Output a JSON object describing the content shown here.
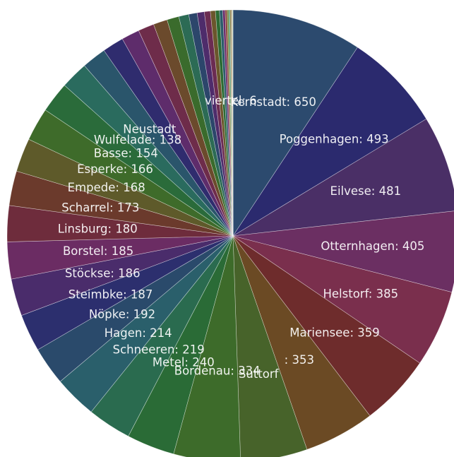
{
  "chart_data": {
    "type": "pie",
    "title": "",
    "slices": [
      {
        "label": "Kernstadt",
        "value": 650,
        "color": "#2c4a6e"
      },
      {
        "label": "Poggenhagen",
        "value": 493,
        "color": "#2b2a6e"
      },
      {
        "label": "Eilvese",
        "value": 481,
        "color": "#4a2f66"
      },
      {
        "label": "Otternhagen",
        "value": 405,
        "color": "#6b2f62"
      },
      {
        "label": "Helstorf",
        "value": 385,
        "color": "#7a2f4d"
      },
      {
        "label": "Mariensee",
        "value": 359,
        "color": "#6e2c2c"
      },
      {
        "label": "",
        "value": 353,
        "color": "#6b4a24"
      },
      {
        "label": "",
        "value": 334,
        "color": "#47632a"
      },
      {
        "label": "Bordenau",
        "value": 334,
        "color": "#3d6b2a"
      },
      {
        "label": "Metel",
        "value": 240,
        "color": "#2a6b36"
      },
      {
        "label": "Schneeren",
        "value": 219,
        "color": "#2a6b4f"
      },
      {
        "label": "Hagen",
        "value": 214,
        "color": "#2a5f6b"
      },
      {
        "label": "Nöpke",
        "value": 192,
        "color": "#2a4a6b"
      },
      {
        "label": "Steimbke",
        "value": 187,
        "color": "#2c2f6e"
      },
      {
        "label": "Stöckse",
        "value": 186,
        "color": "#4a2c6b"
      },
      {
        "label": "Borstel",
        "value": 185,
        "color": "#6b2c63"
      },
      {
        "label": "Linsburg",
        "value": 180,
        "color": "#6e2c3c"
      },
      {
        "label": "Scharrel",
        "value": 173,
        "color": "#6b3a2c"
      },
      {
        "label": "Empede",
        "value": 168,
        "color": "#5e5a2a"
      },
      {
        "label": "Esperke",
        "value": 166,
        "color": "#3e6b2a"
      },
      {
        "label": "Basse",
        "value": 154,
        "color": "#2a6b3a"
      },
      {
        "label": "Wulfelade",
        "value": 138,
        "color": "#2a6b5e"
      },
      {
        "label": "",
        "value": 122,
        "color": "#2a556b"
      },
      {
        "label": "",
        "value": 107,
        "color": "#2f2c6e"
      },
      {
        "label": "",
        "value": 90,
        "color": "#5e2c6b"
      },
      {
        "label": "",
        "value": 80,
        "color": "#6e2c4a"
      },
      {
        "label": "",
        "value": 70,
        "color": "#6b4a2c"
      },
      {
        "label": "",
        "value": 60,
        "color": "#3a6b2c"
      },
      {
        "label": "",
        "value": 50,
        "color": "#2c6b55"
      },
      {
        "label": "",
        "value": 42,
        "color": "#2c466b"
      },
      {
        "label": "",
        "value": 36,
        "color": "#4e2c6b"
      },
      {
        "label": "",
        "value": 30,
        "color": "#6b2c52"
      },
      {
        "label": "",
        "value": 25,
        "color": "#6b562c"
      },
      {
        "label": "",
        "value": 20,
        "color": "#2c6b33"
      },
      {
        "label": "",
        "value": 16,
        "color": "#2c5c6b"
      },
      {
        "label": "",
        "value": 12,
        "color": "#6b2c6b"
      },
      {
        "label": "",
        "value": 10,
        "color": "#8a4a3a"
      },
      {
        "label": "",
        "value": 8,
        "color": "#6b8a3a"
      },
      {
        "label": "",
        "value": 6,
        "color": "#3a8a6b"
      },
      {
        "label": "",
        "value": 5,
        "color": "#8a7a3a"
      },
      {
        "label": "",
        "value": 4,
        "color": "#9a6a4a"
      },
      {
        "label": "",
        "value": 3,
        "color": "#6a9a4a"
      },
      {
        "label": "",
        "value": 2,
        "color": "#8a9a6a"
      },
      {
        "label": "",
        "value": 1,
        "color": "#b0a080"
      }
    ],
    "visible_labels": [
      {
        "text": "Kernstadt: 650",
        "slice": 0
      },
      {
        "text": "Poggenhagen: 493",
        "slice": 1
      },
      {
        "text": "Eilvese: 481",
        "slice": 2
      },
      {
        "text": "Otternhagen: 405",
        "slice": 3
      },
      {
        "text": "Helstorf: 385",
        "slice": 4
      },
      {
        "text": "Mariensee: 359",
        "slice": 5
      },
      {
        "text": ": 353",
        "slice": 6
      },
      {
        "text": "Bordenau: 334",
        "slice": 8
      },
      {
        "text": "Metel: 240",
        "slice": 9
      },
      {
        "text": "Schneeren: 219",
        "slice": 10
      },
      {
        "text": "Hagen: 214",
        "slice": 11
      },
      {
        "text": "Nöpke: 192",
        "slice": 12
      },
      {
        "text": "Steimbke: 187",
        "slice": 13
      },
      {
        "text": "Stöckse: 186",
        "slice": 14
      },
      {
        "text": "Borstel: 185",
        "slice": 15
      },
      {
        "text": "Linsburg: 180",
        "slice": 16
      },
      {
        "text": "Scharrel: 173",
        "slice": 17
      },
      {
        "text": "Empede: 168",
        "slice": 18
      },
      {
        "text": "Esperke: 166",
        "slice": 19
      },
      {
        "text": "Basse: 154",
        "slice": 20
      },
      {
        "text": "Wulfelade: 138",
        "slice": 21
      },
      {
        "text": "Neustadt",
        "slice": 22
      },
      {
        "text": "viertel: 6",
        "slice": 38
      },
      {
        "text": "Suttorf",
        "slice": 7
      }
    ]
  }
}
